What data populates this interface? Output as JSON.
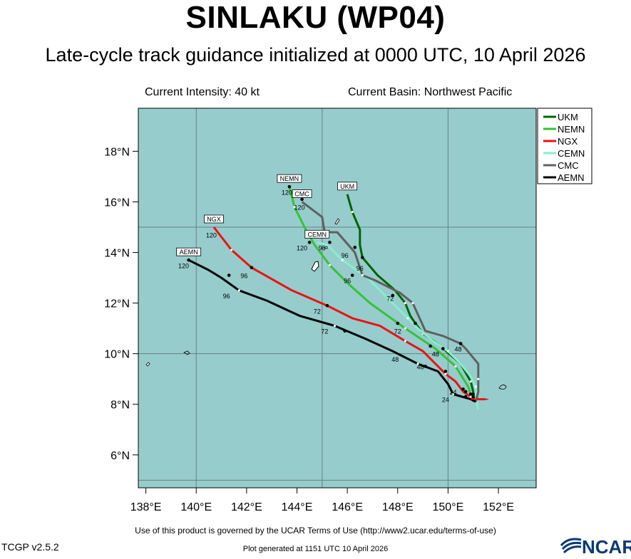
{
  "header": {
    "title": "SINLAKU (WP04)",
    "subtitle": "Late-cycle track guidance initialized at 0000 UTC, 10 April 2026",
    "intensity": "Current Intensity: 40 kt",
    "basin": "Current Basin: Northwest Pacific"
  },
  "footer": {
    "terms": "Use of this product is governed by the UCAR Terms of Use (http://www2.ucar.edu/terms-of-use)",
    "generated": "Plot generated at 1151 UTC   10 April 2026",
    "version": "TCGP v2.5.2",
    "logo_text": "NCAR"
  },
  "colors": {
    "ocean": "#96cccc",
    "land": "#ffffff",
    "border": "#000000",
    "grid": "#6b7f7f"
  },
  "chart_data": {
    "type": "line",
    "map": "Northwest Pacific",
    "xlim": [
      137.7,
      153.5
    ],
    "ylim": [
      4.7,
      19.7
    ],
    "grid": true,
    "grid_lon": [
      140,
      145,
      150
    ],
    "grid_lat": [
      5,
      10,
      15
    ],
    "xticks": [
      {
        "v": 138,
        "label": "138°E"
      },
      {
        "v": 140,
        "label": "140°E"
      },
      {
        "v": 142,
        "label": "142°E"
      },
      {
        "v": 144,
        "label": "144°E"
      },
      {
        "v": 146,
        "label": "146°E"
      },
      {
        "v": 148,
        "label": "148°E"
      },
      {
        "v": 150,
        "label": "150°E"
      },
      {
        "v": 152,
        "label": "152°E"
      }
    ],
    "yticks": [
      {
        "v": 6,
        "label": "6°N"
      },
      {
        "v": 8,
        "label": "8°N"
      },
      {
        "v": 10,
        "label": "10°N"
      },
      {
        "v": 12,
        "label": "12°N"
      },
      {
        "v": 14,
        "label": "14°N"
      },
      {
        "v": 16,
        "label": "16°N"
      },
      {
        "v": 18,
        "label": "18°N"
      }
    ],
    "legend": "top-right",
    "series": [
      {
        "name": "UKM",
        "color": "#006400",
        "points": [
          [
            151.0,
            8.2
          ],
          [
            151.0,
            8.5
          ],
          [
            150.9,
            8.9
          ],
          [
            150.5,
            9.6
          ],
          [
            149.7,
            10.3
          ],
          [
            149.0,
            10.8
          ],
          [
            148.7,
            11.2
          ],
          [
            148.5,
            11.5
          ],
          [
            148.3,
            12.0
          ],
          [
            147.9,
            12.5
          ],
          [
            147.2,
            13.1
          ],
          [
            146.6,
            13.8
          ],
          [
            146.5,
            14.3
          ],
          [
            146.5,
            14.9
          ],
          [
            146.2,
            15.6
          ],
          [
            146.0,
            16.3
          ]
        ],
        "dots": [
          [
            150.9,
            8.4
          ],
          [
            148.7,
            11.2
          ],
          [
            146.6,
            13.8
          ]
        ],
        "labels": [],
        "end_label": "UKM",
        "end_hour": "120"
      },
      {
        "name": "NEMN",
        "color": "#36c236",
        "points": [
          [
            151.0,
            8.1
          ],
          [
            150.8,
            8.7
          ],
          [
            150.3,
            9.5
          ],
          [
            149.5,
            10.2
          ],
          [
            148.9,
            10.6
          ],
          [
            148.3,
            11.0
          ],
          [
            146.9,
            12.0
          ],
          [
            146.0,
            12.8
          ],
          [
            145.3,
            13.5
          ],
          [
            144.7,
            14.3
          ],
          [
            144.3,
            15.0
          ],
          [
            143.9,
            15.8
          ],
          [
            143.7,
            16.6
          ]
        ],
        "dots": [
          [
            150.7,
            8.5
          ],
          [
            149.3,
            10.3
          ],
          [
            148.0,
            11.2
          ],
          [
            146.2,
            13.1
          ],
          [
            144.5,
            14.4
          ],
          [
            143.7,
            16.6
          ]
        ],
        "labels": [
          {
            "x": 149.5,
            "y": 10.0,
            "text": "48"
          },
          {
            "x": 148.0,
            "y": 10.9,
            "text": "72"
          },
          {
            "x": 146.0,
            "y": 12.9,
            "text": "96"
          },
          {
            "x": 143.6,
            "y": 16.4,
            "text": "120"
          }
        ],
        "end_label": "NEMN",
        "end_hour": "120"
      },
      {
        "name": "NGX",
        "color": "#ee1111",
        "points": [
          [
            151.5,
            8.2
          ],
          [
            151.2,
            8.2
          ],
          [
            150.9,
            8.3
          ],
          [
            150.6,
            8.5
          ],
          [
            150.3,
            8.9
          ],
          [
            149.9,
            9.2
          ],
          [
            149.4,
            9.7
          ],
          [
            149.0,
            10.1
          ],
          [
            148.3,
            10.5
          ],
          [
            147.3,
            11.1
          ],
          [
            146.2,
            11.4
          ],
          [
            145.2,
            11.9
          ],
          [
            143.8,
            12.5
          ],
          [
            142.2,
            13.4
          ],
          [
            141.4,
            14.1
          ],
          [
            140.7,
            15.0
          ]
        ],
        "dots": [
          [
            150.6,
            8.6
          ],
          [
            149.9,
            9.3
          ],
          [
            145.2,
            11.9
          ],
          [
            142.2,
            13.4
          ]
        ],
        "labels": [
          {
            "x": 150.2,
            "y": 8.5,
            "text": "24"
          },
          {
            "x": 148.9,
            "y": 9.5,
            "text": "48"
          },
          {
            "x": 144.8,
            "y": 11.7,
            "text": "72"
          },
          {
            "x": 141.9,
            "y": 13.1,
            "text": "96"
          },
          {
            "x": 140.6,
            "y": 14.7,
            "text": "120"
          }
        ],
        "end_label": "NGX",
        "end_hour": "120"
      },
      {
        "name": "CEMN",
        "color": "#88eecc",
        "points": [
          [
            151.2,
            7.8
          ],
          [
            151.1,
            8.3
          ],
          [
            151.1,
            8.7
          ],
          [
            150.9,
            9.1
          ],
          [
            150.5,
            9.6
          ],
          [
            150.0,
            10.1
          ],
          [
            149.4,
            10.5
          ],
          [
            148.8,
            11.0
          ],
          [
            148.4,
            11.4
          ],
          [
            147.6,
            12.2
          ],
          [
            146.8,
            13.0
          ],
          [
            145.8,
            13.7
          ],
          [
            145.2,
            14.3
          ],
          [
            144.8,
            14.4
          ]
        ],
        "dots": [
          [
            151.0,
            8.4
          ],
          [
            149.8,
            10.2
          ],
          [
            147.8,
            12.3
          ],
          [
            145.3,
            14.4
          ]
        ],
        "labels": [
          {
            "x": 147.7,
            "y": 12.2,
            "text": "72"
          },
          {
            "x": 145.0,
            "y": 14.2,
            "text": "96"
          },
          {
            "x": 144.2,
            "y": 14.2,
            "text": "120"
          }
        ],
        "end_label": "CEMN",
        "end_hour": "120"
      },
      {
        "name": "CMC",
        "color": "#606060",
        "points": [
          [
            151.1,
            8.1
          ],
          [
            151.2,
            8.5
          ],
          [
            151.2,
            9.0
          ],
          [
            151.2,
            9.6
          ],
          [
            150.7,
            10.2
          ],
          [
            150.5,
            10.4
          ],
          [
            149.8,
            10.7
          ],
          [
            149.1,
            10.9
          ],
          [
            148.6,
            12.0
          ],
          [
            148.1,
            12.4
          ],
          [
            147.1,
            12.9
          ],
          [
            146.6,
            13.1
          ],
          [
            146.3,
            14.0
          ],
          [
            145.6,
            14.8
          ],
          [
            145.1,
            14.8
          ],
          [
            145.0,
            15.4
          ],
          [
            144.2,
            16.0
          ]
        ],
        "dots": [
          [
            151.0,
            8.3
          ],
          [
            150.5,
            10.4
          ],
          [
            146.3,
            14.2
          ],
          [
            144.2,
            16.1
          ]
        ],
        "labels": [
          {
            "x": 150.4,
            "y": 10.2,
            "text": "48"
          },
          {
            "x": 145.9,
            "y": 13.9,
            "text": "96"
          },
          {
            "x": 146.5,
            "y": 13.4,
            "text": "96"
          },
          {
            "x": 144.1,
            "y": 15.8,
            "text": "120"
          }
        ],
        "end_label": "CMC",
        "end_hour": "120"
      },
      {
        "name": "AEMN",
        "color": "#000000",
        "points": [
          [
            151.1,
            8.1
          ],
          [
            150.9,
            8.2
          ],
          [
            150.2,
            8.4
          ],
          [
            150.0,
            8.8
          ],
          [
            149.6,
            9.3
          ],
          [
            148.8,
            9.6
          ],
          [
            147.8,
            10.1
          ],
          [
            146.7,
            10.6
          ],
          [
            145.5,
            11.1
          ],
          [
            144.1,
            11.5
          ],
          [
            142.8,
            12.1
          ],
          [
            141.7,
            12.5
          ],
          [
            141.0,
            13.0
          ],
          [
            140.5,
            13.3
          ],
          [
            139.7,
            13.7
          ]
        ],
        "dots": [
          [
            150.7,
            8.3
          ],
          [
            149.1,
            9.5
          ],
          [
            145.9,
            10.9
          ],
          [
            141.3,
            13.1
          ],
          [
            139.7,
            13.7
          ]
        ],
        "labels": [
          {
            "x": 149.9,
            "y": 8.2,
            "text": "24"
          },
          {
            "x": 147.9,
            "y": 9.8,
            "text": "48"
          },
          {
            "x": 145.1,
            "y": 10.9,
            "text": "72"
          },
          {
            "x": 141.2,
            "y": 12.3,
            "text": "96"
          },
          {
            "x": 139.5,
            "y": 13.5,
            "text": "120"
          }
        ],
        "end_label": "AEMN",
        "end_hour": "120"
      }
    ]
  }
}
